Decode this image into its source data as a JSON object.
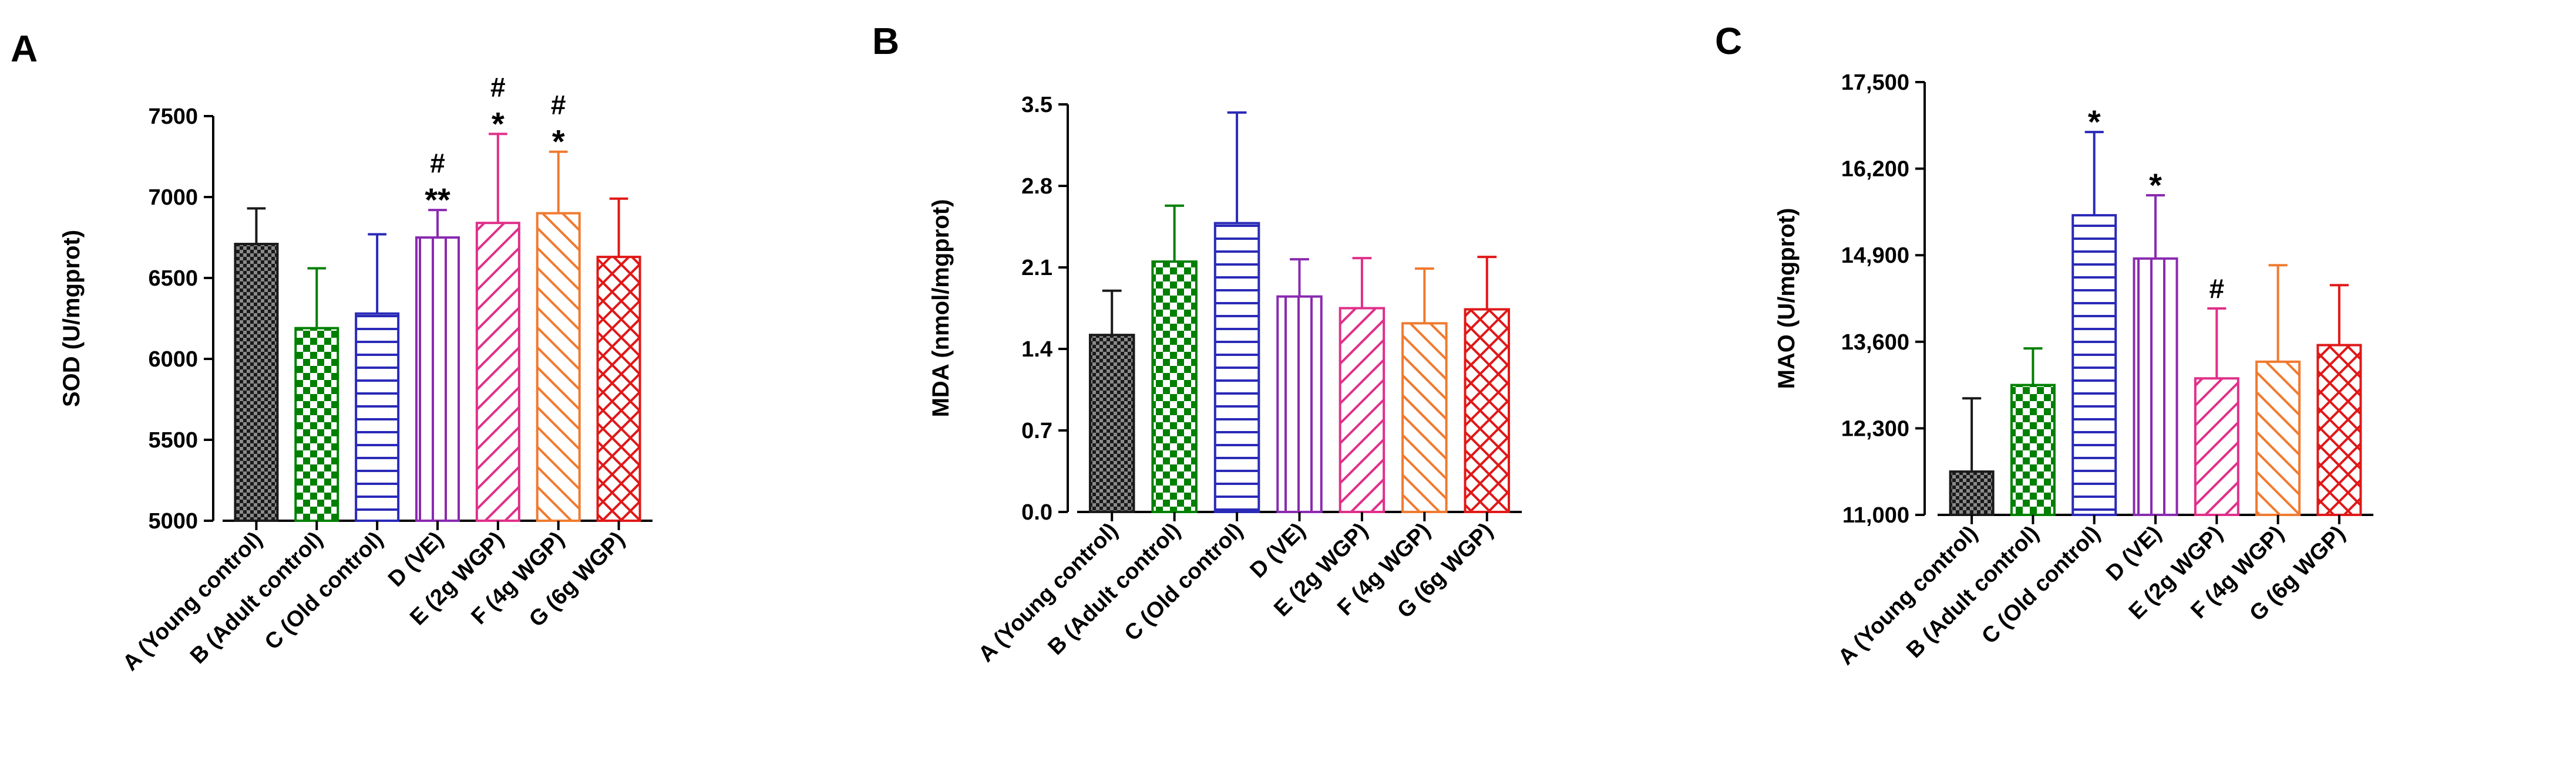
{
  "chart_data": [
    {
      "type": "bar",
      "panel_label": "A",
      "ylabel": "SOD (U/mgprot)",
      "xlabel": "",
      "ylim": [
        5000,
        7500
      ],
      "yticks": [
        "5000",
        "5500",
        "6000",
        "6500",
        "7000",
        "7500"
      ],
      "categories": [
        "A (Young control)",
        "B (Adult control)",
        "C (Old control)",
        "D (VE)",
        "E (2g WGP)",
        "F (4g WGP)",
        "G (6g WGP)"
      ],
      "values": [
        6710,
        6190,
        6280,
        6750,
        6840,
        6900,
        6630
      ],
      "errors": [
        220,
        370,
        490,
        170,
        550,
        380,
        360
      ],
      "annotations": [
        [],
        [],
        [],
        [
          "#",
          "**"
        ],
        [
          "#",
          "*"
        ],
        [
          "#",
          "*"
        ],
        []
      ]
    },
    {
      "type": "bar",
      "panel_label": "B",
      "ylabel": "MDA (nmol/mgprot)",
      "xlabel": "",
      "ylim": [
        0,
        3.5
      ],
      "yticks": [
        "0.0",
        "0.7",
        "1.4",
        "2.1",
        "2.8",
        "3.5"
      ],
      "categories": [
        "A (Young control)",
        "B (Adult control)",
        "C (Old control)",
        "D (VE)",
        "E (2g WGP)",
        "F (4g WGP)",
        "G (6g WGP)"
      ],
      "values": [
        1.52,
        2.15,
        2.48,
        1.85,
        1.75,
        1.62,
        1.74
      ],
      "errors": [
        0.38,
        0.48,
        0.95,
        0.32,
        0.43,
        0.47,
        0.45
      ],
      "annotations": [
        [],
        [],
        [],
        [],
        [],
        [],
        []
      ]
    },
    {
      "type": "bar",
      "panel_label": "C",
      "ylabel": "MAO (U/mgprot)",
      "xlabel": "",
      "ylim": [
        11000,
        17500
      ],
      "yticks": [
        "11,000",
        "12,300",
        "13,600",
        "14,900",
        "16,200",
        "17,500"
      ],
      "categories": [
        "A (Young control)",
        "B (Adult control)",
        "C (Old control)",
        "D (VE)",
        "E (2g WGP)",
        "F (4g WGP)",
        "G (6g WGP)"
      ],
      "values": [
        11650,
        12950,
        15500,
        14850,
        13050,
        13300,
        13550
      ],
      "errors": [
        1100,
        550,
        1250,
        950,
        1050,
        1450,
        900
      ],
      "annotations": [
        [],
        [],
        [
          "*"
        ],
        [
          "*"
        ],
        [
          "#"
        ],
        [],
        []
      ]
    }
  ],
  "style": {
    "bar_colors": [
      "#1a1a1a",
      "#008000",
      "#2a2ab8",
      "#8a2ab0",
      "#e0308a",
      "#f07a30",
      "#e01818"
    ],
    "patterns": [
      "grid-fine",
      "checker",
      "horizontal-lines",
      "vertical-lines",
      "diagonal-up",
      "diagonal-down",
      "crosshatch"
    ]
  }
}
